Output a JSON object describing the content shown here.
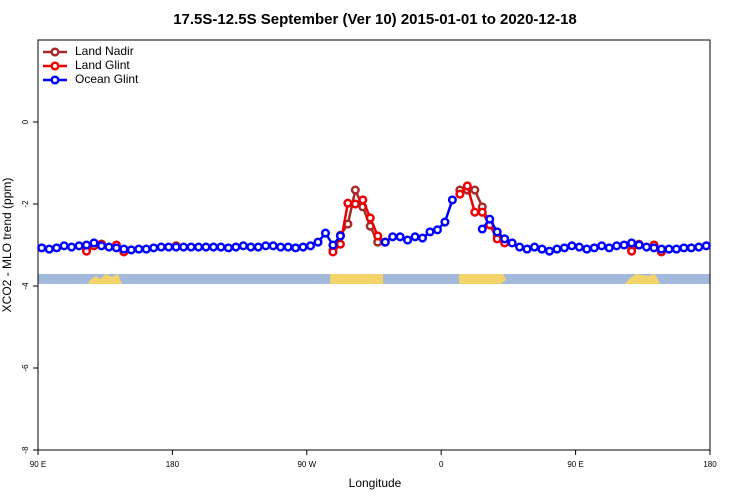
{
  "chart_data": {
    "type": "line",
    "title": "17.5S-12.5S September (Ver 10)   2015-01-01 to 2020-12-18",
    "xlabel": "Longitude",
    "ylabel": "XCO2 - MLO trend (ppm)",
    "xlim": [
      -270,
      180
    ],
    "ylim": [
      -8,
      2
    ],
    "xticks": [
      {
        "value": -270,
        "label": "90 E"
      },
      {
        "value": -180,
        "label": "180"
      },
      {
        "value": -90,
        "label": "90 W"
      },
      0,
      {
        "value": 90,
        "label": "90 E"
      },
      {
        "value": 180,
        "label": "180"
      }
    ],
    "yticks": [
      0,
      -2,
      -4,
      -6,
      -8
    ],
    "legend": "topleft",
    "x": [
      -267.5,
      -262.5,
      -257.5,
      -252.5,
      -247.5,
      -242.5,
      -237.5,
      -232.5,
      -227.5,
      -222.5,
      -217.5,
      -212.5,
      -207.5,
      -202.5,
      -197.5,
      -192.5,
      -187.5,
      -182.5,
      -177.5,
      -172.5,
      -167.5,
      -162.5,
      -157.5,
      -152.5,
      -147.5,
      -142.5,
      -137.5,
      -132.5,
      -127.5,
      -122.5,
      -117.5,
      -112.5,
      -107.5,
      -102.5,
      -97.5,
      -92.5,
      -87.5,
      -82.5,
      -77.5,
      -72.5,
      -67.5,
      -62.5,
      -57.5,
      -52.5,
      -47.5,
      -42.5,
      -37.5,
      -32.5,
      -27.5,
      -22.5,
      -17.5,
      -12.5,
      -7.5,
      -2.5,
      2.5,
      7.5,
      12.5,
      17.5,
      22.5,
      27.5,
      32.5,
      37.5,
      42.5,
      47.5,
      52.5,
      57.5,
      62.5,
      67.5,
      72.5,
      77.5,
      82.5,
      87.5,
      92.5,
      97.5,
      102.5,
      107.5,
      112.5,
      117.5,
      122.5,
      127.5,
      132.5,
      137.5,
      142.5,
      147.5,
      152.5,
      157.5,
      162.5,
      167.5,
      172.5,
      177.5
    ],
    "series": [
      {
        "name": "Land Nadir",
        "color": "#a52a2a",
        "values": [
          null,
          null,
          null,
          null,
          null,
          null,
          -3.1,
          null,
          -2.98,
          null,
          null,
          -3.12,
          null,
          null,
          null,
          null,
          null,
          null,
          null,
          null,
          null,
          null,
          null,
          null,
          null,
          null,
          null,
          null,
          null,
          null,
          null,
          null,
          null,
          null,
          null,
          null,
          null,
          null,
          null,
          -3.12,
          -2.76,
          -2.49,
          -1.66,
          -2.07,
          -2.54,
          -2.93,
          -2.93,
          null,
          null,
          null,
          null,
          null,
          null,
          null,
          null,
          null,
          -1.66,
          -1.66,
          -1.66,
          -2.07,
          -2.49,
          -2.76,
          -2.93,
          null,
          null,
          null,
          null,
          null,
          null,
          null,
          null,
          null,
          null,
          null,
          null,
          null,
          null,
          null,
          null,
          -3.12,
          -2.98,
          null,
          null,
          -3.12,
          null,
          null,
          null,
          null,
          null,
          null
        ]
      },
      {
        "name": "Land Glint",
        "color": "#ee0000",
        "values": [
          null,
          null,
          null,
          null,
          null,
          null,
          -3.15,
          -3.02,
          -2.98,
          null,
          -3.0,
          -3.17,
          null,
          null,
          null,
          null,
          null,
          null,
          -3.02,
          null,
          null,
          null,
          null,
          null,
          null,
          null,
          null,
          null,
          null,
          null,
          null,
          null,
          null,
          null,
          null,
          null,
          null,
          null,
          null,
          -3.17,
          -2.98,
          -1.98,
          -2.0,
          -1.9,
          -2.34,
          -2.78,
          -2.93,
          null,
          null,
          null,
          null,
          null,
          null,
          null,
          null,
          null,
          -1.76,
          -1.56,
          -2.2,
          -2.2,
          -2.51,
          -2.85,
          -2.95,
          null,
          null,
          null,
          null,
          null,
          null,
          null,
          null,
          null,
          null,
          null,
          null,
          null,
          null,
          null,
          null,
          -3.15,
          -3.0,
          null,
          -3.0,
          -3.17,
          null,
          null,
          null,
          null,
          null,
          null
        ]
      },
      {
        "name": "Ocean Glint",
        "color": "#0000ff",
        "values": [
          -3.07,
          -3.1,
          -3.07,
          -3.02,
          -3.05,
          -3.02,
          -3.0,
          -2.95,
          -3.02,
          -3.05,
          -3.07,
          -3.1,
          -3.12,
          -3.1,
          -3.1,
          -3.07,
          -3.05,
          -3.05,
          -3.05,
          -3.05,
          -3.05,
          -3.05,
          -3.05,
          -3.05,
          -3.05,
          -3.07,
          -3.05,
          -3.02,
          -3.05,
          -3.05,
          -3.02,
          -3.02,
          -3.05,
          -3.05,
          -3.07,
          -3.05,
          -3.02,
          -2.93,
          -2.71,
          -3.0,
          -2.78,
          null,
          null,
          null,
          null,
          null,
          -2.93,
          -2.8,
          -2.8,
          -2.88,
          -2.8,
          -2.83,
          -2.68,
          -2.63,
          -2.44,
          -1.9,
          null,
          null,
          null,
          -2.61,
          -2.37,
          -2.68,
          -2.85,
          -2.95,
          -3.05,
          -3.1,
          -3.05,
          -3.1,
          -3.15,
          -3.1,
          -3.07,
          -3.02,
          -3.05,
          -3.1,
          -3.07,
          -3.02,
          -3.07,
          -3.02,
          -3.0,
          -2.95,
          -3.0,
          -3.05,
          -3.07,
          -3.1,
          -3.1,
          -3.1,
          -3.07,
          -3.07,
          -3.05,
          -3.02
        ]
      }
    ]
  }
}
